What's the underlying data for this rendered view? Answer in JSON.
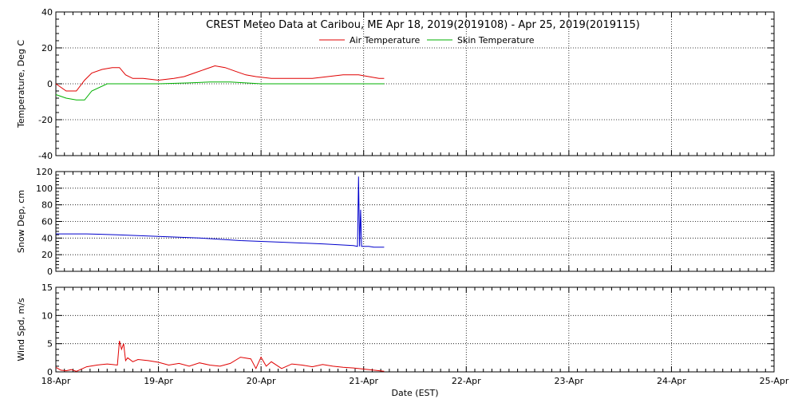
{
  "chart_data": {
    "type": "line",
    "title": "CREST Meteo Data at Caribou, ME   Apr 18, 2019(2019108) - Apr 25, 2019(2019115)",
    "xlabel": "Date (EST)",
    "x_ticks": [
      "18-Apr",
      "19-Apr",
      "20-Apr",
      "21-Apr",
      "22-Apr",
      "23-Apr",
      "24-Apr",
      "25-Apr"
    ],
    "xlim": [
      0,
      7
    ],
    "grid": true,
    "panels": [
      {
        "ylabel": "Temperature, Deg C",
        "ylim": [
          -40,
          40
        ],
        "yticks": [
          -40,
          -20,
          0,
          20,
          40
        ],
        "legend": "top-center",
        "series": [
          {
            "name": "Air Temperature",
            "color": "#e00000",
            "x": [
              0,
              0.1,
              0.2,
              0.28,
              0.35,
              0.45,
              0.55,
              0.62,
              0.68,
              0.75,
              0.85,
              1.0,
              1.15,
              1.25,
              1.35,
              1.45,
              1.55,
              1.65,
              1.75,
              1.85,
              1.95,
              2.1,
              2.3,
              2.5,
              2.65,
              2.8,
              2.95,
              3.05,
              3.15,
              3.2
            ],
            "y": [
              0,
              -4,
              -4,
              2,
              6,
              8,
              9,
              9,
              5,
              3,
              3,
              2,
              3,
              4,
              6,
              8,
              10,
              9,
              7,
              5,
              4,
              3,
              3,
              3,
              4,
              5,
              5,
              4,
              3,
              3
            ]
          },
          {
            "name": "Skin Temperature",
            "color": "#00b000",
            "x": [
              0,
              0.1,
              0.2,
              0.28,
              0.35,
              0.5,
              0.8,
              1.0,
              1.3,
              1.5,
              1.7,
              2.0,
              2.5,
              3.2
            ],
            "y": [
              -6,
              -8,
              -9,
              -9,
              -4,
              0,
              0,
              0,
              0.5,
              1,
              1,
              0,
              0,
              0
            ]
          }
        ]
      },
      {
        "ylabel": "Snow Dep, cm",
        "ylim": [
          0,
          120
        ],
        "yticks": [
          0,
          20,
          40,
          60,
          80,
          100,
          120
        ],
        "series": [
          {
            "name": "",
            "color": "#0000cc",
            "x": [
              0,
              0.3,
              0.6,
              1.0,
              1.4,
              1.8,
              2.2,
              2.6,
              2.9,
              2.94,
              2.95,
              2.96,
              2.97,
              2.98,
              3.05,
              3.1,
              3.2
            ],
            "y": [
              45,
              45,
              44,
              42,
              40,
              37,
              35,
              33,
              31,
              30,
              114,
              30,
              74,
              30,
              30,
              29,
              29
            ]
          }
        ]
      },
      {
        "ylabel": "Wind Spd, m/s",
        "ylim": [
          0,
          15
        ],
        "yticks": [
          0,
          5,
          10,
          15
        ],
        "series": [
          {
            "name": "",
            "color": "#e00000",
            "x": [
              0,
              0.05,
              0.1,
              0.15,
              0.2,
              0.3,
              0.4,
              0.5,
              0.55,
              0.6,
              0.62,
              0.64,
              0.66,
              0.68,
              0.7,
              0.75,
              0.8,
              0.9,
              1.0,
              1.1,
              1.2,
              1.3,
              1.4,
              1.5,
              1.6,
              1.7,
              1.8,
              1.9,
              1.95,
              2.0,
              2.05,
              2.1,
              2.2,
              2.3,
              2.4,
              2.5,
              2.6,
              2.7,
              2.8,
              2.9,
              3.0,
              3.1,
              3.2
            ],
            "y": [
              0.8,
              0.3,
              0.2,
              0.4,
              0.1,
              0.9,
              1.2,
              1.4,
              1.3,
              1.2,
              5.5,
              4.0,
              5.0,
              2.0,
              2.5,
              1.8,
              2.2,
              2.0,
              1.7,
              1.2,
              1.5,
              1.0,
              1.6,
              1.2,
              1.0,
              1.5,
              2.6,
              2.3,
              0.6,
              2.6,
              1.0,
              1.8,
              0.6,
              1.4,
              1.2,
              0.9,
              1.3,
              1.0,
              0.8,
              0.7,
              0.5,
              0.3,
              0.1
            ]
          }
        ]
      }
    ]
  }
}
